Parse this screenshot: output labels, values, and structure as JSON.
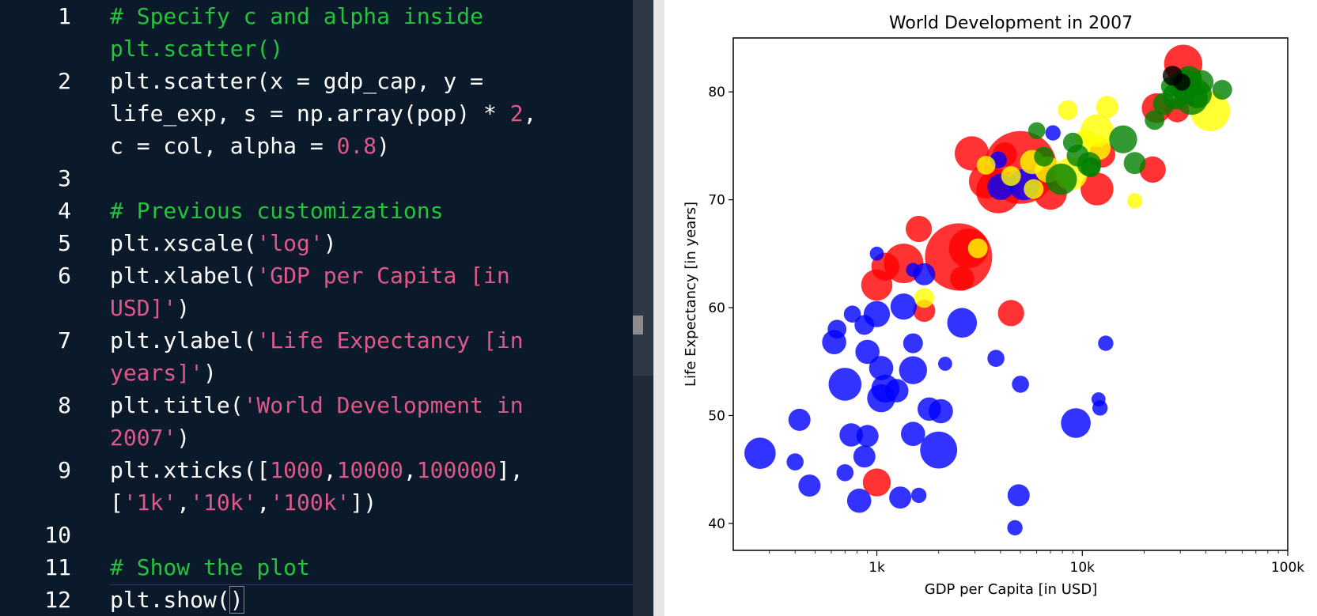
{
  "editor": {
    "lines": [
      {
        "num": "1",
        "segs": [
          {
            "t": "# Specify c and alpha inside",
            "c": "cm"
          }
        ]
      },
      {
        "num": "",
        "segs": [
          {
            "t": "plt.scatter()",
            "c": "cm"
          }
        ]
      },
      {
        "num": "2",
        "segs": [
          {
            "t": "plt.scatter(x = gdp_cap, y =",
            "c": ""
          }
        ]
      },
      {
        "num": "",
        "segs": [
          {
            "t": "life_exp, s = np.array(pop) * ",
            "c": ""
          },
          {
            "t": "2",
            "c": "nm"
          },
          {
            "t": ",",
            "c": ""
          }
        ]
      },
      {
        "num": "",
        "segs": [
          {
            "t": "c = col, alpha = ",
            "c": ""
          },
          {
            "t": "0.8",
            "c": "nm"
          },
          {
            "t": ")",
            "c": ""
          }
        ]
      },
      {
        "num": "3",
        "segs": []
      },
      {
        "num": "4",
        "segs": [
          {
            "t": "# Previous customizations",
            "c": "cm"
          }
        ]
      },
      {
        "num": "5",
        "segs": [
          {
            "t": "plt.xscale(",
            "c": ""
          },
          {
            "t": "'log'",
            "c": "st"
          },
          {
            "t": ")",
            "c": ""
          }
        ]
      },
      {
        "num": "6",
        "segs": [
          {
            "t": "plt.xlabel(",
            "c": ""
          },
          {
            "t": "'GDP per Capita [in",
            "c": "st"
          }
        ]
      },
      {
        "num": "",
        "segs": [
          {
            "t": "USD]'",
            "c": "st"
          },
          {
            "t": ")",
            "c": ""
          }
        ]
      },
      {
        "num": "7",
        "segs": [
          {
            "t": "plt.ylabel(",
            "c": ""
          },
          {
            "t": "'Life Expectancy [in",
            "c": "st"
          }
        ]
      },
      {
        "num": "",
        "segs": [
          {
            "t": "years]'",
            "c": "st"
          },
          {
            "t": ")",
            "c": ""
          }
        ]
      },
      {
        "num": "8",
        "segs": [
          {
            "t": "plt.title(",
            "c": ""
          },
          {
            "t": "'World Development in",
            "c": "st"
          }
        ]
      },
      {
        "num": "",
        "segs": [
          {
            "t": "2007'",
            "c": "st"
          },
          {
            "t": ")",
            "c": ""
          }
        ]
      },
      {
        "num": "9",
        "segs": [
          {
            "t": "plt.xticks([",
            "c": ""
          },
          {
            "t": "1000",
            "c": "nm"
          },
          {
            "t": ",",
            "c": ""
          },
          {
            "t": "10000",
            "c": "nm"
          },
          {
            "t": ",",
            "c": ""
          },
          {
            "t": "100000",
            "c": "nm"
          },
          {
            "t": "],",
            "c": ""
          }
        ]
      },
      {
        "num": "",
        "segs": [
          {
            "t": "[",
            "c": ""
          },
          {
            "t": "'1k'",
            "c": "st"
          },
          {
            "t": ",",
            "c": ""
          },
          {
            "t": "'10k'",
            "c": "st"
          },
          {
            "t": ",",
            "c": ""
          },
          {
            "t": "'100k'",
            "c": "st"
          },
          {
            "t": "])",
            "c": ""
          }
        ]
      },
      {
        "num": "10",
        "segs": []
      },
      {
        "num": "11",
        "segs": [
          {
            "t": "# Show the plot",
            "c": "cm"
          }
        ]
      },
      {
        "num": "12",
        "segs": [
          {
            "t": "plt.show(",
            "c": ""
          },
          {
            "t": ")",
            "c": "pm"
          }
        ]
      }
    ]
  },
  "chart_data": {
    "type": "scatter",
    "title": "World Development in 2007",
    "xlabel": "GDP per Capita [in USD]",
    "ylabel": "Life Expectancy [in years]",
    "xscale": "log",
    "xlim": [
      200,
      100000
    ],
    "ylim": [
      37.5,
      85
    ],
    "xticks": [
      {
        "value": 1000,
        "label": "1k"
      },
      {
        "value": 10000,
        "label": "10k"
      },
      {
        "value": 100000,
        "label": "100k"
      }
    ],
    "yticks": [
      40,
      50,
      60,
      70,
      80
    ],
    "grid": false,
    "alpha": 0.8,
    "colors": {
      "red": "#ff0000",
      "blue": "#0000ff",
      "yellow": "#ffff00",
      "green": "#008000",
      "black": "#000000"
    },
    "points": [
      {
        "x": 5000,
        "y": 73,
        "s": 2.7,
        "c": "red"
      },
      {
        "x": 2500,
        "y": 64.7,
        "s": 2.3,
        "c": "red"
      },
      {
        "x": 2800,
        "y": 65.5,
        "s": 0.8,
        "c": "red"
      },
      {
        "x": 3900,
        "y": 70.8,
        "s": 1.0,
        "c": "red"
      },
      {
        "x": 3400,
        "y": 71.7,
        "s": 0.6,
        "c": "red"
      },
      {
        "x": 1350,
        "y": 64.1,
        "s": 0.8,
        "c": "red"
      },
      {
        "x": 2900,
        "y": 74.3,
        "s": 0.6,
        "c": "red"
      },
      {
        "x": 7000,
        "y": 70.6,
        "s": 0.55,
        "c": "red"
      },
      {
        "x": 11800,
        "y": 71,
        "s": 0.55,
        "c": "red"
      },
      {
        "x": 1000,
        "y": 62.1,
        "s": 0.5,
        "c": "red"
      },
      {
        "x": 1100,
        "y": 63.8,
        "s": 0.4,
        "c": "red"
      },
      {
        "x": 1600,
        "y": 67.3,
        "s": 0.35,
        "c": "red"
      },
      {
        "x": 4500,
        "y": 59.5,
        "s": 0.35,
        "c": "red"
      },
      {
        "x": 1000,
        "y": 43.8,
        "s": 0.4,
        "c": "red"
      },
      {
        "x": 1700,
        "y": 59.7,
        "s": 0.25,
        "c": "red"
      },
      {
        "x": 23000,
        "y": 78.5,
        "s": 0.45,
        "c": "red"
      },
      {
        "x": 31000,
        "y": 82.6,
        "s": 0.75,
        "c": "red"
      },
      {
        "x": 22000,
        "y": 72.8,
        "s": 0.35,
        "c": "red"
      },
      {
        "x": 12500,
        "y": 74.2,
        "s": 0.35,
        "c": "red"
      },
      {
        "x": 4200,
        "y": 74.2,
        "s": 0.3,
        "c": "red"
      },
      {
        "x": 6300,
        "y": 72.4,
        "s": 0.3,
        "c": "red"
      },
      {
        "x": 2600,
        "y": 62.7,
        "s": 0.3,
        "c": "red"
      },
      {
        "x": 29000,
        "y": 78.3,
        "s": 0.3,
        "c": "red"
      },
      {
        "x": 36000,
        "y": 79.5,
        "s": 0.25,
        "c": "red"
      },
      {
        "x": 270,
        "y": 46.5,
        "s": 0.5,
        "c": "blue"
      },
      {
        "x": 2000,
        "y": 46.8,
        "s": 0.7,
        "c": "blue"
      },
      {
        "x": 700,
        "y": 52.9,
        "s": 0.55,
        "c": "blue"
      },
      {
        "x": 9300,
        "y": 49.3,
        "s": 0.45,
        "c": "blue"
      },
      {
        "x": 2600,
        "y": 58.6,
        "s": 0.45,
        "c": "blue"
      },
      {
        "x": 1500,
        "y": 54.2,
        "s": 0.4,
        "c": "blue"
      },
      {
        "x": 1100,
        "y": 52.5,
        "s": 0.4,
        "c": "blue"
      },
      {
        "x": 1050,
        "y": 51.6,
        "s": 0.4,
        "c": "blue"
      },
      {
        "x": 1350,
        "y": 60.1,
        "s": 0.35,
        "c": "blue"
      },
      {
        "x": 1000,
        "y": 59.4,
        "s": 0.35,
        "c": "blue"
      },
      {
        "x": 620,
        "y": 56.8,
        "s": 0.3,
        "c": "blue"
      },
      {
        "x": 900,
        "y": 55.9,
        "s": 0.3,
        "c": "blue"
      },
      {
        "x": 1050,
        "y": 54.4,
        "s": 0.3,
        "c": "blue"
      },
      {
        "x": 2050,
        "y": 50.4,
        "s": 0.3,
        "c": "blue"
      },
      {
        "x": 1800,
        "y": 50.6,
        "s": 0.28,
        "c": "blue"
      },
      {
        "x": 1250,
        "y": 52.3,
        "s": 0.28,
        "c": "blue"
      },
      {
        "x": 1500,
        "y": 48.3,
        "s": 0.3,
        "c": "blue"
      },
      {
        "x": 750,
        "y": 48.2,
        "s": 0.28,
        "c": "blue"
      },
      {
        "x": 900,
        "y": 48.1,
        "s": 0.25,
        "c": "blue"
      },
      {
        "x": 870,
        "y": 46.2,
        "s": 0.25,
        "c": "blue"
      },
      {
        "x": 420,
        "y": 49.6,
        "s": 0.25,
        "c": "blue"
      },
      {
        "x": 470,
        "y": 43.5,
        "s": 0.25,
        "c": "blue"
      },
      {
        "x": 820,
        "y": 42.1,
        "s": 0.3,
        "c": "blue"
      },
      {
        "x": 1300,
        "y": 42.4,
        "s": 0.25,
        "c": "blue"
      },
      {
        "x": 4900,
        "y": 42.6,
        "s": 0.25,
        "c": "blue"
      },
      {
        "x": 5200,
        "y": 71.4,
        "s": 0.5,
        "c": "blue"
      },
      {
        "x": 4000,
        "y": 71.2,
        "s": 0.35,
        "c": "blue"
      },
      {
        "x": 1700,
        "y": 63.1,
        "s": 0.25,
        "c": "blue"
      },
      {
        "x": 1500,
        "y": 56.7,
        "s": 0.2,
        "c": "blue"
      },
      {
        "x": 870,
        "y": 58.4,
        "s": 0.2,
        "c": "blue"
      },
      {
        "x": 640,
        "y": 58,
        "s": 0.18,
        "c": "blue"
      },
      {
        "x": 400,
        "y": 45.7,
        "s": 0.15,
        "c": "blue"
      },
      {
        "x": 760,
        "y": 59.4,
        "s": 0.15,
        "c": "blue"
      },
      {
        "x": 3800,
        "y": 55.3,
        "s": 0.15,
        "c": "blue"
      },
      {
        "x": 5000,
        "y": 52.9,
        "s": 0.15,
        "c": "blue"
      },
      {
        "x": 700,
        "y": 44.7,
        "s": 0.15,
        "c": "blue"
      },
      {
        "x": 13000,
        "y": 56.7,
        "s": 0.12,
        "c": "blue"
      },
      {
        "x": 12200,
        "y": 50.7,
        "s": 0.12,
        "c": "blue"
      },
      {
        "x": 12000,
        "y": 51.5,
        "s": 0.1,
        "c": "blue"
      },
      {
        "x": 4700,
        "y": 39.6,
        "s": 0.12,
        "c": "blue"
      },
      {
        "x": 1600,
        "y": 42.6,
        "s": 0.12,
        "c": "blue"
      },
      {
        "x": 2150,
        "y": 54.8,
        "s": 0.1,
        "c": "blue"
      },
      {
        "x": 1000,
        "y": 65,
        "s": 0.1,
        "c": "blue"
      },
      {
        "x": 1500,
        "y": 63.5,
        "s": 0.1,
        "c": "blue"
      },
      {
        "x": 3900,
        "y": 73.7,
        "s": 0.15,
        "c": "blue"
      },
      {
        "x": 7200,
        "y": 76.2,
        "s": 0.12,
        "c": "blue"
      },
      {
        "x": 11800,
        "y": 76.4,
        "s": 0.55,
        "c": "yellow"
      },
      {
        "x": 8800,
        "y": 72.4,
        "s": 0.55,
        "c": "yellow"
      },
      {
        "x": 42000,
        "y": 78.2,
        "s": 0.8,
        "c": "yellow"
      },
      {
        "x": 6800,
        "y": 72.8,
        "s": 0.35,
        "c": "yellow"
      },
      {
        "x": 5700,
        "y": 73.5,
        "s": 0.3,
        "c": "yellow"
      },
      {
        "x": 12000,
        "y": 74.8,
        "s": 0.3,
        "c": "yellow"
      },
      {
        "x": 8500,
        "y": 78.3,
        "s": 0.2,
        "c": "yellow"
      },
      {
        "x": 10300,
        "y": 75.6,
        "s": 0.2,
        "c": "yellow"
      },
      {
        "x": 13200,
        "y": 78.6,
        "s": 0.25,
        "c": "yellow"
      },
      {
        "x": 3100,
        "y": 65.5,
        "s": 0.2,
        "c": "yellow"
      },
      {
        "x": 1700,
        "y": 60.9,
        "s": 0.2,
        "c": "yellow"
      },
      {
        "x": 4500,
        "y": 72.2,
        "s": 0.2,
        "c": "yellow"
      },
      {
        "x": 5800,
        "y": 71,
        "s": 0.2,
        "c": "yellow"
      },
      {
        "x": 35000,
        "y": 80.5,
        "s": 0.3,
        "c": "yellow"
      },
      {
        "x": 18000,
        "y": 69.9,
        "s": 0.12,
        "c": "yellow"
      },
      {
        "x": 3400,
        "y": 73.2,
        "s": 0.18,
        "c": "yellow"
      },
      {
        "x": 7900,
        "y": 71.9,
        "s": 0.5,
        "c": "green"
      },
      {
        "x": 34000,
        "y": 79.4,
        "s": 0.55,
        "c": "green"
      },
      {
        "x": 31500,
        "y": 80.6,
        "s": 0.5,
        "c": "green"
      },
      {
        "x": 36500,
        "y": 79.8,
        "s": 0.4,
        "c": "green"
      },
      {
        "x": 15800,
        "y": 75.6,
        "s": 0.4,
        "c": "green"
      },
      {
        "x": 10800,
        "y": 73.3,
        "s": 0.3,
        "c": "green"
      },
      {
        "x": 28500,
        "y": 79.6,
        "s": 0.35,
        "c": "green"
      },
      {
        "x": 33000,
        "y": 81.2,
        "s": 0.35,
        "c": "green"
      },
      {
        "x": 38000,
        "y": 80.9,
        "s": 0.3,
        "c": "green"
      },
      {
        "x": 25000,
        "y": 78.9,
        "s": 0.25,
        "c": "green"
      },
      {
        "x": 9500,
        "y": 74.1,
        "s": 0.25,
        "c": "green"
      },
      {
        "x": 18000,
        "y": 73.4,
        "s": 0.25,
        "c": "green"
      },
      {
        "x": 22500,
        "y": 77.4,
        "s": 0.2,
        "c": "green"
      },
      {
        "x": 6500,
        "y": 74,
        "s": 0.2,
        "c": "green"
      },
      {
        "x": 9000,
        "y": 75.3,
        "s": 0.2,
        "c": "green"
      },
      {
        "x": 48000,
        "y": 80.2,
        "s": 0.2,
        "c": "green"
      },
      {
        "x": 27000,
        "y": 80.5,
        "s": 0.2,
        "c": "green"
      },
      {
        "x": 11000,
        "y": 73,
        "s": 0.2,
        "c": "green"
      },
      {
        "x": 6000,
        "y": 76.4,
        "s": 0.15,
        "c": "green"
      },
      {
        "x": 27500,
        "y": 81.5,
        "s": 0.2,
        "c": "black"
      },
      {
        "x": 30500,
        "y": 80.9,
        "s": 0.15,
        "c": "black"
      }
    ]
  }
}
